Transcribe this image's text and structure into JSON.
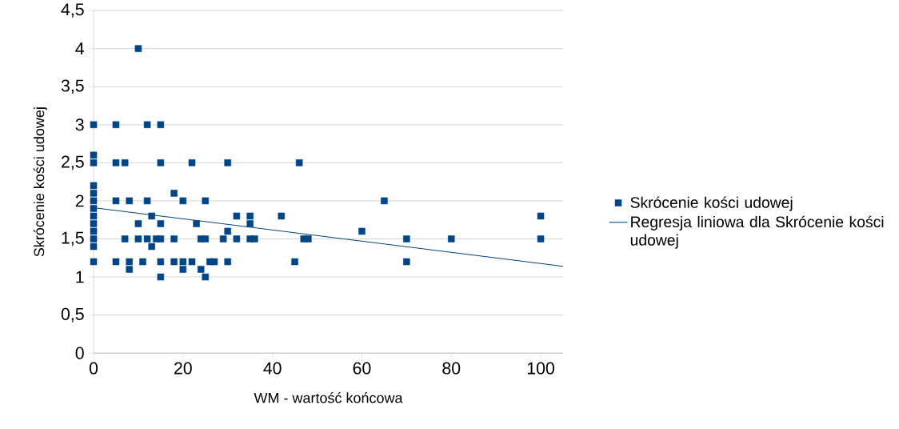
{
  "chart_data": {
    "type": "scatter",
    "xlabel": "WM - wartość końcowa",
    "ylabel": "Skrócenie kości udowej",
    "xlim": [
      0,
      105
    ],
    "xticks": [
      0,
      20,
      40,
      60,
      80,
      100
    ],
    "ylim": [
      0,
      4.5
    ],
    "yticks": [
      0,
      {
        "value": 0.5,
        "label": "0,5"
      },
      1,
      {
        "value": 1.5,
        "label": "1,5"
      },
      2,
      {
        "value": 2.5,
        "label": "2,5"
      },
      3,
      {
        "value": 3.5,
        "label": "3,5"
      },
      4,
      {
        "value": 4.5,
        "label": "4,5"
      }
    ],
    "grid": "y",
    "legend": "right",
    "marker": "square",
    "series": [
      {
        "name": "Skrócenie kości udowej",
        "color": "#004586",
        "x": [
          0,
          0,
          0,
          0,
          0,
          0,
          0,
          0,
          0,
          0,
          0,
          0,
          0,
          5,
          5,
          5,
          5,
          7,
          7,
          8,
          8,
          8,
          10,
          10,
          10,
          11,
          12,
          12,
          12,
          13,
          13,
          14,
          15,
          15,
          15,
          15,
          15,
          15,
          18,
          18,
          18,
          20,
          20,
          20,
          22,
          22,
          23,
          24,
          24,
          25,
          25,
          25,
          26,
          27,
          29,
          30,
          30,
          30,
          32,
          32,
          35,
          35,
          35,
          36,
          42,
          45,
          46,
          47,
          48,
          60,
          65,
          70,
          70,
          80,
          100,
          100
        ],
        "values": [
          3,
          2.6,
          2.5,
          2.2,
          2.1,
          2.0,
          1.9,
          1.8,
          1.7,
          1.6,
          1.5,
          1.4,
          1.2,
          3,
          2.5,
          2.0,
          1.2,
          2.5,
          1.5,
          2.0,
          1.2,
          1.1,
          4.0,
          1.7,
          1.5,
          1.2,
          3.0,
          2.0,
          1.5,
          1.8,
          1.4,
          1.5,
          3,
          2.5,
          1.7,
          1.5,
          1.2,
          1.0,
          2.1,
          1.5,
          1.2,
          2.0,
          1.2,
          1.1,
          2.5,
          1.2,
          1.7,
          1.5,
          1.1,
          2.0,
          1.5,
          1.0,
          1.2,
          1.2,
          1.5,
          2.5,
          1.6,
          1.2,
          1.8,
          1.5,
          1.8,
          1.7,
          1.5,
          1.5,
          1.8,
          1.2,
          2.5,
          1.5,
          1.5,
          1.6,
          2.0,
          1.5,
          1.2,
          1.5,
          1.8,
          1.5
        ]
      },
      {
        "name": "Regresja liniowa dla Skrócenie kości udowej",
        "color": "#004586",
        "type": "line",
        "marker": "none",
        "line_style": "solid",
        "x": [
          0,
          105
        ],
        "values": [
          1.91,
          1.14
        ]
      }
    ]
  }
}
